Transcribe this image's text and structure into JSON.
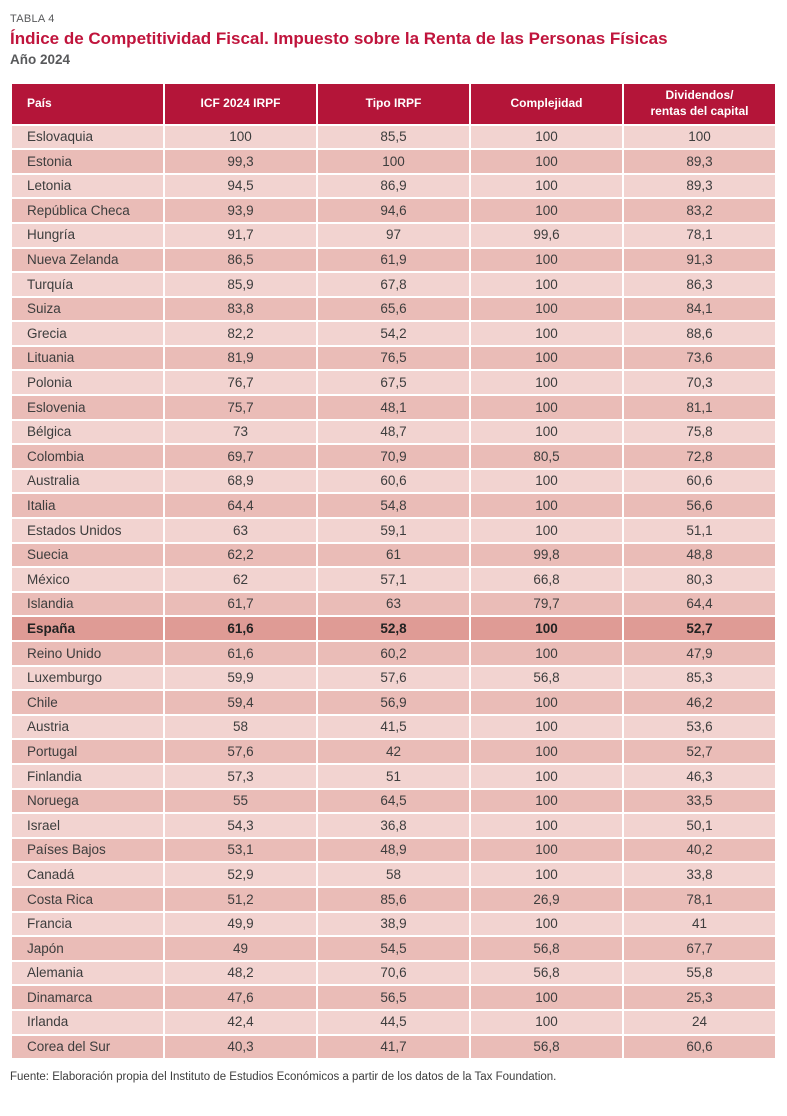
{
  "meta": {
    "table_label": "TABLA 4",
    "title": "Índice de Competitividad Fiscal. Impuesto sobre la Renta de las Personas Físicas",
    "subtitle": "Año 2024",
    "source": "Fuente: Elaboración propia del Instituto de Estudios Económicos a partir de los datos de la Tax Foundation."
  },
  "colors": {
    "header_bg": "#b41539",
    "title_red": "#c0143c",
    "row_light": "#f2d3d0",
    "row_dark": "#eabcb7",
    "row_highlight": "#df9b95",
    "label_gray": "#58595b",
    "body_text": "#3d3d3d"
  },
  "table": {
    "columns": [
      "País",
      "ICF 2024 IRPF",
      "Tipo IRPF",
      "Complejidad",
      "Dividendos/\nrentas del capital"
    ],
    "highlight_row": "España",
    "rows": [
      [
        "Eslovaquia",
        "100",
        "85,5",
        "100",
        "100"
      ],
      [
        "Estonia",
        "99,3",
        "100",
        "100",
        "89,3"
      ],
      [
        "Letonia",
        "94,5",
        "86,9",
        "100",
        "89,3"
      ],
      [
        "República Checa",
        "93,9",
        "94,6",
        "100",
        "83,2"
      ],
      [
        "Hungría",
        "91,7",
        "97",
        "99,6",
        "78,1"
      ],
      [
        "Nueva Zelanda",
        "86,5",
        "61,9",
        "100",
        "91,3"
      ],
      [
        "Turquía",
        "85,9",
        "67,8",
        "100",
        "86,3"
      ],
      [
        "Suiza",
        "83,8",
        "65,6",
        "100",
        "84,1"
      ],
      [
        "Grecia",
        "82,2",
        "54,2",
        "100",
        "88,6"
      ],
      [
        "Lituania",
        "81,9",
        "76,5",
        "100",
        "73,6"
      ],
      [
        "Polonia",
        "76,7",
        "67,5",
        "100",
        "70,3"
      ],
      [
        "Eslovenia",
        "75,7",
        "48,1",
        "100",
        "81,1"
      ],
      [
        "Bélgica",
        "73",
        "48,7",
        "100",
        "75,8"
      ],
      [
        "Colombia",
        "69,7",
        "70,9",
        "80,5",
        "72,8"
      ],
      [
        "Australia",
        "68,9",
        "60,6",
        "100",
        "60,6"
      ],
      [
        "Italia",
        "64,4",
        "54,8",
        "100",
        "56,6"
      ],
      [
        "Estados Unidos",
        "63",
        "59,1",
        "100",
        "51,1"
      ],
      [
        "Suecia",
        "62,2",
        "61",
        "99,8",
        "48,8"
      ],
      [
        "México",
        "62",
        "57,1",
        "66,8",
        "80,3"
      ],
      [
        "Islandia",
        "61,7",
        "63",
        "79,7",
        "64,4"
      ],
      [
        "España",
        "61,6",
        "52,8",
        "100",
        "52,7"
      ],
      [
        "Reino Unido",
        "61,6",
        "60,2",
        "100",
        "47,9"
      ],
      [
        "Luxemburgo",
        "59,9",
        "57,6",
        "56,8",
        "85,3"
      ],
      [
        "Chile",
        "59,4",
        "56,9",
        "100",
        "46,2"
      ],
      [
        "Austria",
        "58",
        "41,5",
        "100",
        "53,6"
      ],
      [
        "Portugal",
        "57,6",
        "42",
        "100",
        "52,7"
      ],
      [
        "Finlandia",
        "57,3",
        "51",
        "100",
        "46,3"
      ],
      [
        "Noruega",
        "55",
        "64,5",
        "100",
        "33,5"
      ],
      [
        "Israel",
        "54,3",
        "36,8",
        "100",
        "50,1"
      ],
      [
        "Países Bajos",
        "53,1",
        "48,9",
        "100",
        "40,2"
      ],
      [
        "Canadá",
        "52,9",
        "58",
        "100",
        "33,8"
      ],
      [
        "Costa Rica",
        "51,2",
        "85,6",
        "26,9",
        "78,1"
      ],
      [
        "Francia",
        "49,9",
        "38,9",
        "100",
        "41"
      ],
      [
        "Japón",
        "49",
        "54,5",
        "56,8",
        "67,7"
      ],
      [
        "Alemania",
        "48,2",
        "70,6",
        "56,8",
        "55,8"
      ],
      [
        "Dinamarca",
        "47,6",
        "56,5",
        "100",
        "25,3"
      ],
      [
        "Irlanda",
        "42,4",
        "44,5",
        "100",
        "24"
      ],
      [
        "Corea del Sur",
        "40,3",
        "41,7",
        "56,8",
        "60,6"
      ]
    ]
  }
}
